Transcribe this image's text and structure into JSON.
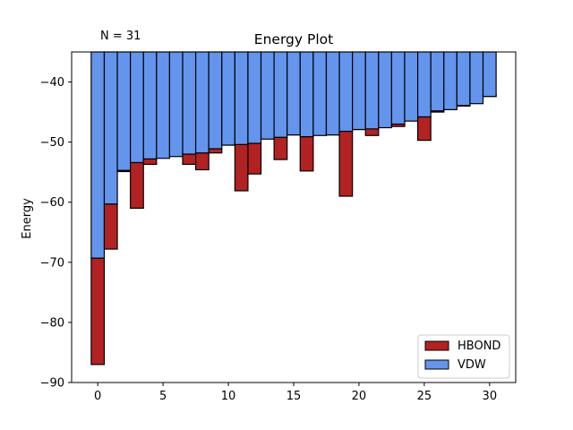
{
  "chart_data": {
    "type": "bar",
    "title": "Energy Plot",
    "ylabel": "Energy",
    "xlabel": "",
    "annotation": "N = 31",
    "xlim": [
      -2,
      32
    ],
    "ylim": [
      -90,
      -35
    ],
    "x_ticks": [
      0,
      5,
      10,
      15,
      20,
      25,
      30
    ],
    "y_ticks": [
      -90,
      -80,
      -70,
      -60,
      -50,
      -40
    ],
    "x_tick_labels": [
      "0",
      "5",
      "10",
      "15",
      "20",
      "25",
      "30"
    ],
    "y_tick_labels": [
      "−90",
      "−80",
      "−70",
      "−60",
      "−50",
      "−40"
    ],
    "bar_top": -35,
    "x": [
      0,
      1,
      2,
      3,
      4,
      5,
      6,
      7,
      8,
      9,
      10,
      11,
      12,
      13,
      14,
      15,
      16,
      17,
      18,
      19,
      20,
      21,
      22,
      23,
      24,
      25,
      26,
      27,
      28,
      29,
      30
    ],
    "series": [
      {
        "name": "VDW",
        "color": "#6495ED",
        "values": [
          -69.3,
          -60.3,
          -54.7,
          -53.4,
          -52.8,
          -52.7,
          -52.4,
          -52.0,
          -51.8,
          -51.1,
          -50.5,
          -50.4,
          -50.2,
          -49.5,
          -49.2,
          -48.8,
          -49.1,
          -48.9,
          -48.8,
          -48.2,
          -47.9,
          -47.8,
          -47.6,
          -47.0,
          -46.5,
          -45.8,
          -44.8,
          -44.6,
          -43.9,
          -43.6,
          -42.4
        ]
      },
      {
        "name": "HBOND",
        "color": "#B22222",
        "values": [
          -17.7,
          -7.5,
          -0.2,
          -7.6,
          -0.9,
          0,
          0,
          -1.7,
          -2.8,
          -0.7,
          1.0,
          -7.7,
          -5.1,
          0,
          -3.7,
          0.9,
          -5.7,
          0,
          0.2,
          -10.8,
          0.2,
          -1.1,
          0,
          -0.4,
          0,
          -3.9,
          -0.2,
          3.1,
          -0.1,
          0,
          0.3
        ]
      }
    ],
    "legend": {
      "placement": "lower-right",
      "entries": [
        {
          "label": "HBOND",
          "color": "#B22222"
        },
        {
          "label": "VDW",
          "color": "#6495ED"
        }
      ]
    },
    "grid": false
  }
}
